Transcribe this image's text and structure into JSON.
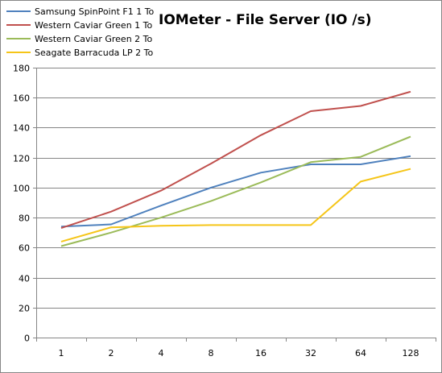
{
  "chart_data": {
    "type": "line",
    "title": "IOMeter - File Server (IO /s)",
    "xlabel": "",
    "ylabel": "",
    "categories": [
      "1",
      "2",
      "4",
      "8",
      "16",
      "32",
      "64",
      "128"
    ],
    "ylim": [
      0,
      180
    ],
    "yticks": [
      0,
      20,
      40,
      60,
      80,
      100,
      120,
      140,
      160,
      180
    ],
    "grid": true,
    "legend_position": "top-left",
    "series": [
      {
        "name": "Samsung SpinPoint F1 1 To",
        "color": "#4F81BD",
        "values": [
          74,
          75.5,
          88,
          100,
          110,
          115.5,
          115.5,
          121
        ]
      },
      {
        "name": "Western Caviar Green 1 To",
        "color": "#C0504D",
        "values": [
          73,
          84,
          98,
          116,
          135,
          151,
          154.5,
          164
        ]
      },
      {
        "name": "Western Caviar Green 2 To",
        "color": "#9BBB59",
        "values": [
          61,
          70,
          80,
          91,
          103.5,
          117,
          120.5,
          134
        ]
      },
      {
        "name": "Seagate Barracuda LP 2 To",
        "color": "#F5C518",
        "values": [
          64,
          73.5,
          74.5,
          75,
          75,
          75,
          104,
          112.5
        ]
      }
    ]
  }
}
